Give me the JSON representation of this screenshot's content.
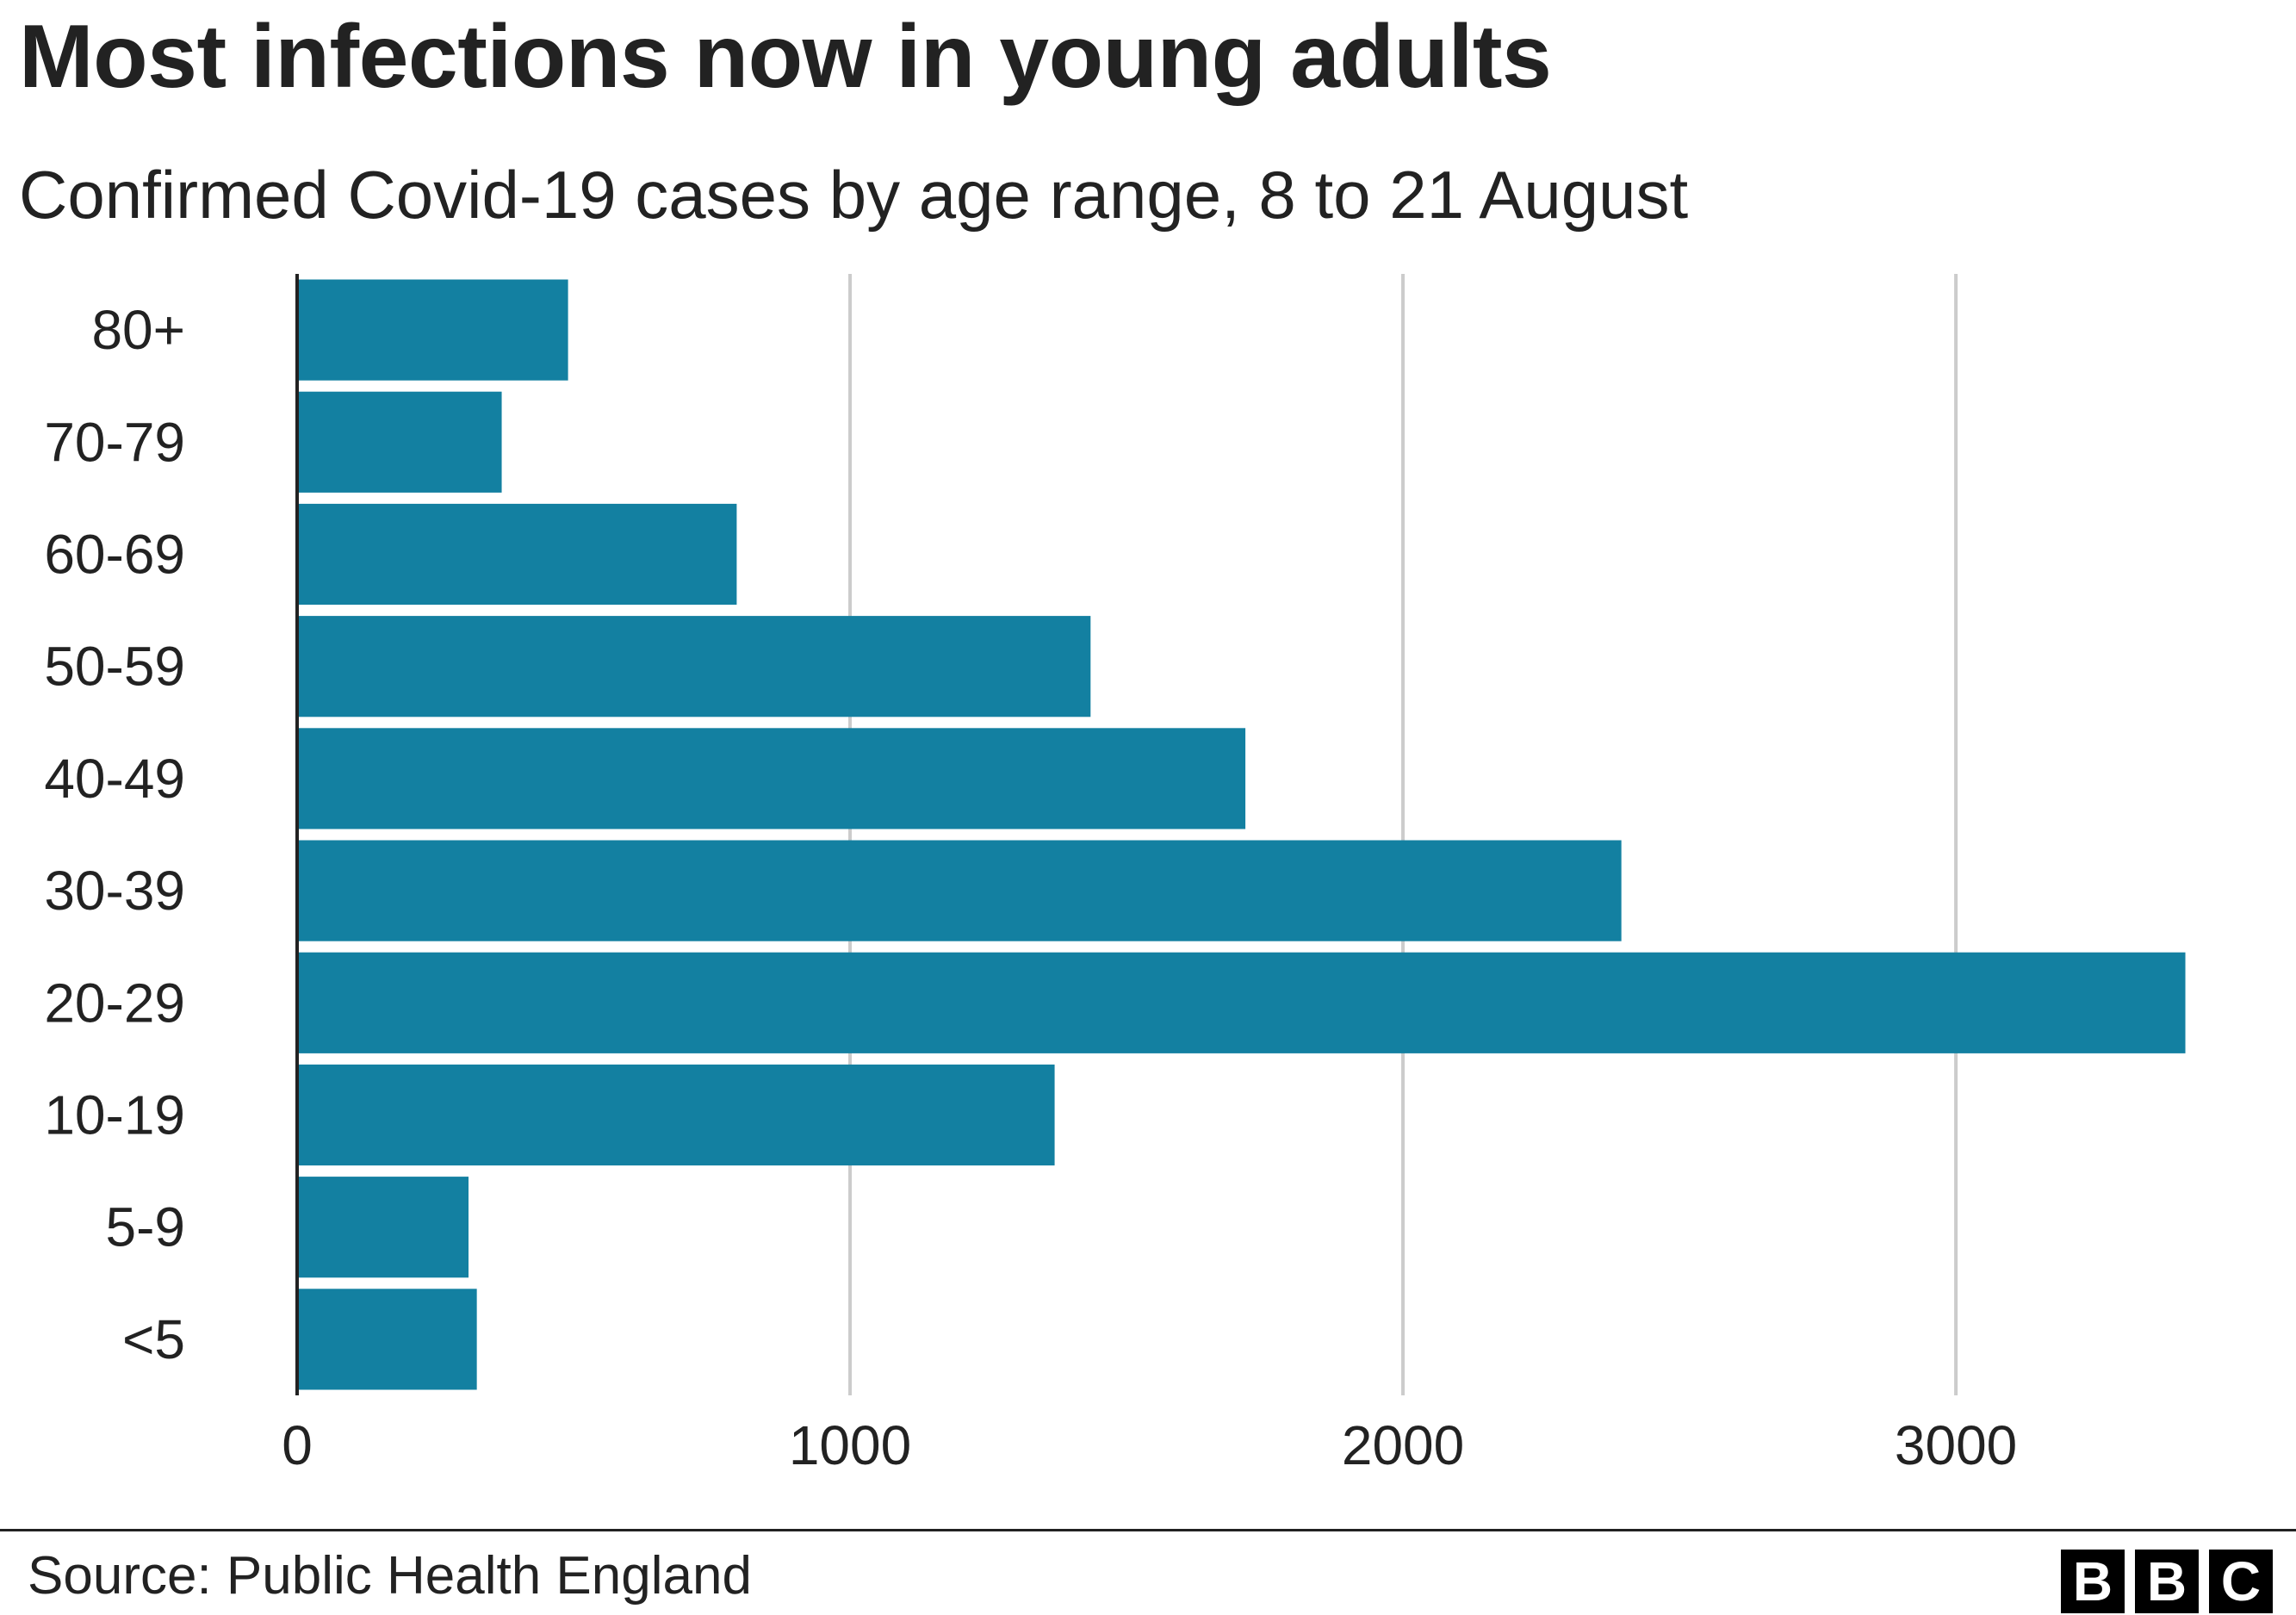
{
  "title": "Most infections now in young adults",
  "subtitle": "Confirmed Covid-19 cases by age range, 8 to 21 August",
  "source": "Source: Public Health England",
  "logo": {
    "letters": [
      "B",
      "B",
      "C"
    ]
  },
  "colors": {
    "bar": "#1380a1",
    "grid": "#cccccc",
    "axis": "#222222",
    "text": "#222222"
  },
  "chart_data": {
    "type": "bar",
    "orientation": "horizontal",
    "title": "Most infections now in young adults",
    "subtitle": "Confirmed Covid-19 cases by age range, 8 to 21 August",
    "xlabel": "",
    "ylabel": "",
    "categories": [
      "80+",
      "70-79",
      "60-69",
      "50-59",
      "40-49",
      "30-39",
      "20-29",
      "10-19",
      "5-9",
      "<5"
    ],
    "values": [
      490,
      370,
      795,
      1435,
      1715,
      2395,
      3415,
      1370,
      310,
      325
    ],
    "xlim": [
      0,
      3450
    ],
    "xticks": [
      0,
      1000,
      2000,
      3000
    ],
    "xtick_labels": [
      "0",
      "1000",
      "2000",
      "3000"
    ],
    "grid": true,
    "legend": "none"
  }
}
